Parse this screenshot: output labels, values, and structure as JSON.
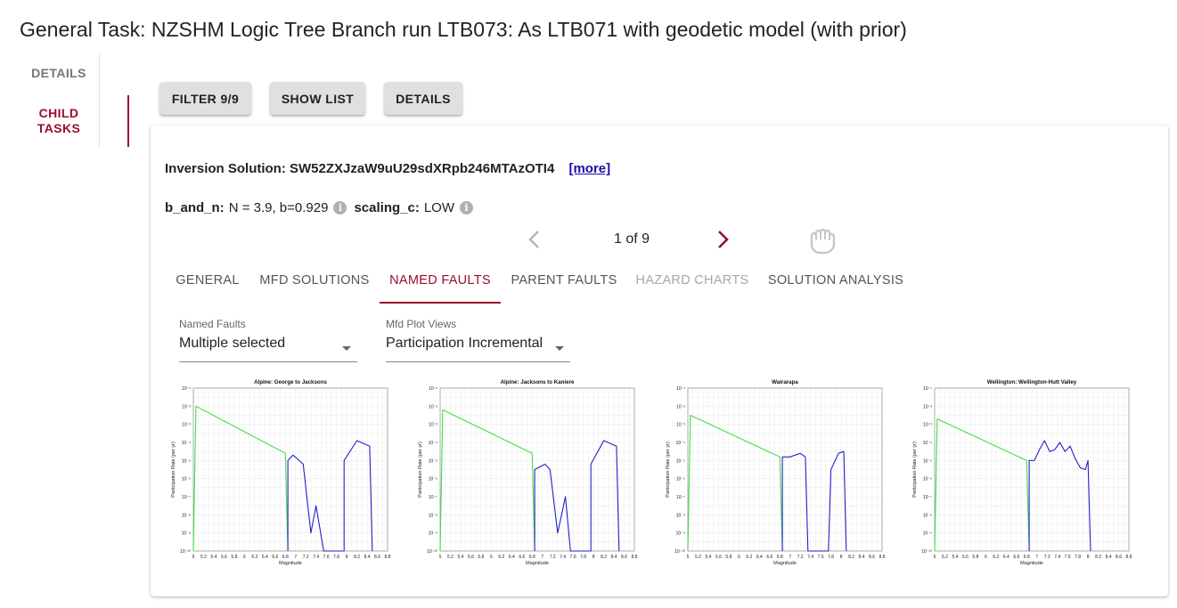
{
  "page": {
    "title": "General Task: NZSHM Logic Tree Branch run LTB073: As LTB071 with geodetic model (with prior)"
  },
  "side_tabs": [
    {
      "label": "DETAILS",
      "active": false
    },
    {
      "label": "CHILD TASKS",
      "active": true
    }
  ],
  "toolbar": {
    "filter_label": "FILTER 9/9",
    "show_list_label": "SHOW LIST",
    "details_label": "DETAILS"
  },
  "card": {
    "inversion_label": "Inversion Solution: SW52ZXJzaW9uU29sdXRpb246MTAzOTI4",
    "more_label": "[more]",
    "b_and_n_key": "b_and_n:",
    "b_and_n_value": "N = 3.9, b=0.929",
    "scaling_c_key": "scaling_c:",
    "scaling_c_value": "LOW",
    "info_icon": "i",
    "pager": {
      "text": "1 of 9",
      "prev_icon": "chevron-left-icon",
      "next_icon": "chevron-right-icon",
      "grab_icon": "hand-grab-icon"
    },
    "tabs": [
      {
        "label": "GENERAL",
        "state": "normal"
      },
      {
        "label": "MFD SOLUTIONS",
        "state": "normal"
      },
      {
        "label": "NAMED FAULTS",
        "state": "active"
      },
      {
        "label": "PARENT FAULTS",
        "state": "normal"
      },
      {
        "label": "HAZARD CHARTS",
        "state": "disabled"
      },
      {
        "label": "SOLUTION ANALYSIS",
        "state": "normal"
      }
    ],
    "named_faults_select": {
      "label": "Named Faults",
      "value": "Multiple selected"
    },
    "mfd_select": {
      "label": "Mfd Plot Views",
      "value": "Participation Incremental"
    }
  },
  "colors": {
    "accent": "#9b0d2c",
    "prior_line": "#44dd44",
    "solution_line": "#1f22c8",
    "link": "#1a0dab"
  },
  "chart_data": [
    {
      "type": "line",
      "title": "Alpine: George to Jacksons",
      "xlabel": "Magnitude",
      "ylabel": "Participation Rate (per yr)",
      "x_ticks": [
        "5",
        "5.2",
        "5.4",
        "5.6",
        "5.8",
        "6",
        "6.2",
        "6.4",
        "6.6",
        "6.8",
        "7",
        "7.2",
        "7.4",
        "7.6",
        "7.8",
        "8",
        "8.2",
        "8.4",
        "8.6",
        "8.8"
      ],
      "y_ticks": [
        "10⁻¹",
        "10⁻²",
        "10⁻³",
        "10⁻⁴",
        "10⁻⁵",
        "10⁻⁶",
        "10⁻⁷",
        "10⁻⁸",
        "10⁻⁹",
        "10⁻¹⁰"
      ],
      "ylog_range": [
        -10,
        -1
      ],
      "xlim": [
        5,
        8.8
      ],
      "series": [
        {
          "color": "#44dd44",
          "points": [
            [
              5,
              -10
            ],
            [
              5.05,
              -2.0
            ],
            [
              6.8,
              -4.6
            ],
            [
              6.85,
              -10
            ]
          ]
        },
        {
          "color": "#1f22c8",
          "points": [
            [
              6.85,
              -10
            ],
            [
              6.85,
              -5.0
            ],
            [
              6.95,
              -4.7
            ],
            [
              7.15,
              -5.2
            ],
            [
              7.3,
              -9.0
            ],
            [
              7.4,
              -7.5
            ],
            [
              7.55,
              -10
            ],
            [
              7.95,
              -10
            ],
            [
              7.95,
              -5.0
            ],
            [
              8.2,
              -3.9
            ],
            [
              8.45,
              -4.2
            ],
            [
              8.5,
              -10
            ]
          ]
        }
      ]
    },
    {
      "type": "line",
      "title": "Alpine: Jacksons to Kaniere",
      "xlabel": "Magnitude",
      "ylabel": "Participation Rate (per yr)",
      "x_ticks": [
        "5",
        "5.2",
        "5.4",
        "5.6",
        "5.8",
        "6",
        "6.2",
        "6.4",
        "6.6",
        "6.8",
        "7",
        "7.2",
        "7.4",
        "7.6",
        "7.8",
        "8",
        "8.2",
        "8.4",
        "8.6",
        "8.8"
      ],
      "y_ticks": [
        "10⁻¹",
        "10⁻²",
        "10⁻³",
        "10⁻⁴",
        "10⁻⁵",
        "10⁻⁶",
        "10⁻⁷",
        "10⁻⁸",
        "10⁻⁹",
        "10⁻¹⁰"
      ],
      "ylog_range": [
        -10,
        -1
      ],
      "xlim": [
        5,
        8.8
      ],
      "series": [
        {
          "color": "#44dd44",
          "points": [
            [
              5,
              -10
            ],
            [
              5.05,
              -2.2
            ],
            [
              6.8,
              -4.6
            ],
            [
              6.85,
              -10
            ]
          ]
        },
        {
          "color": "#1f22c8",
          "points": [
            [
              6.85,
              -10
            ],
            [
              6.85,
              -5.5
            ],
            [
              7.05,
              -5.2
            ],
            [
              7.15,
              -5.5
            ],
            [
              7.3,
              -9.0
            ],
            [
              7.45,
              -7.0
            ],
            [
              7.55,
              -10
            ],
            [
              7.95,
              -10
            ],
            [
              7.95,
              -5.2
            ],
            [
              8.2,
              -3.9
            ],
            [
              8.45,
              -4.2
            ],
            [
              8.5,
              -10
            ]
          ]
        }
      ]
    },
    {
      "type": "line",
      "title": "Wairarapa",
      "xlabel": "Magnitude",
      "ylabel": "Participation Rate (per yr)",
      "x_ticks": [
        "5",
        "5.2",
        "5.4",
        "5.6",
        "5.8",
        "6",
        "6.2",
        "6.4",
        "6.6",
        "6.8",
        "7",
        "7.2",
        "7.4",
        "7.6",
        "7.8",
        "8",
        "8.2",
        "8.4",
        "8.6",
        "8.8"
      ],
      "y_ticks": [
        "10⁻¹",
        "10⁻²",
        "10⁻³",
        "10⁻⁴",
        "10⁻⁵",
        "10⁻⁶",
        "10⁻⁷",
        "10⁻⁸",
        "10⁻⁹",
        "10⁻¹⁰"
      ],
      "ylog_range": [
        -10,
        -1
      ],
      "xlim": [
        5,
        8.8
      ],
      "series": [
        {
          "color": "#44dd44",
          "points": [
            [
              5,
              -10
            ],
            [
              5.05,
              -2.5
            ],
            [
              6.8,
              -4.8
            ],
            [
              6.85,
              -10
            ]
          ]
        },
        {
          "color": "#1f22c8",
          "points": [
            [
              6.85,
              -10
            ],
            [
              6.85,
              -4.8
            ],
            [
              7.0,
              -4.8
            ],
            [
              7.1,
              -4.7
            ],
            [
              7.2,
              -4.6
            ],
            [
              7.3,
              -4.8
            ],
            [
              7.35,
              -10
            ],
            [
              7.75,
              -10
            ],
            [
              7.8,
              -5.5
            ],
            [
              7.95,
              -4.6
            ],
            [
              8.05,
              -4.5
            ],
            [
              8.1,
              -10
            ]
          ]
        }
      ]
    },
    {
      "type": "line",
      "title": "Wellington: Wellington-Hutt Valley",
      "xlabel": "Magnitude",
      "ylabel": "Participation Rate (per yr)",
      "x_ticks": [
        "5",
        "5.2",
        "5.4",
        "5.6",
        "5.8",
        "6",
        "6.2",
        "6.4",
        "6.6",
        "6.8",
        "7",
        "7.2",
        "7.4",
        "7.6",
        "7.8",
        "8",
        "8.2",
        "8.4",
        "8.6",
        "8.8"
      ],
      "y_ticks": [
        "10⁻¹",
        "10⁻²",
        "10⁻³",
        "10⁻⁴",
        "10⁻⁵",
        "10⁻⁶",
        "10⁻⁷",
        "10⁻⁸",
        "10⁻⁹",
        "10⁻¹⁰"
      ],
      "ylog_range": [
        -10,
        -1
      ],
      "xlim": [
        5,
        8.8
      ],
      "series": [
        {
          "color": "#44dd44",
          "points": [
            [
              5,
              -10
            ],
            [
              5.05,
              -2.7
            ],
            [
              6.8,
              -5.0
            ],
            [
              6.85,
              -10
            ]
          ]
        },
        {
          "color": "#1f22c8",
          "points": [
            [
              6.85,
              -10
            ],
            [
              6.85,
              -5.0
            ],
            [
              6.95,
              -5.0
            ],
            [
              7.05,
              -4.4
            ],
            [
              7.15,
              -3.9
            ],
            [
              7.25,
              -4.5
            ],
            [
              7.35,
              -4.4
            ],
            [
              7.45,
              -4.0
            ],
            [
              7.55,
              -4.5
            ],
            [
              7.65,
              -4.2
            ],
            [
              7.75,
              -4.9
            ],
            [
              7.85,
              -5.4
            ],
            [
              7.95,
              -5.5
            ],
            [
              8.0,
              -5.0
            ],
            [
              8.05,
              -10
            ]
          ]
        }
      ]
    }
  ]
}
